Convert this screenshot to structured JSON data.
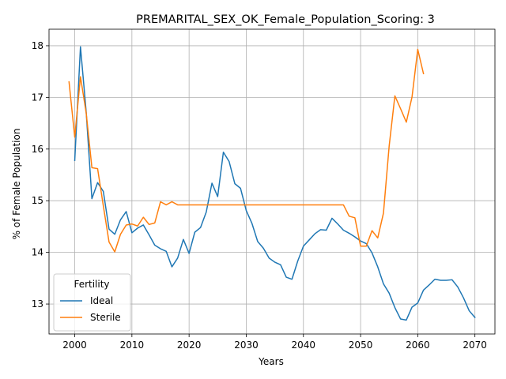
{
  "chart_data": {
    "type": "line",
    "title": "PREMARITAL_SEX_OK_Female_Population_Scoring: 3",
    "xlabel": "Years",
    "ylabel": "% of Female Population",
    "xlim": [
      1995.5,
      2073.5
    ],
    "ylim": [
      12.42,
      18.32
    ],
    "x_ticks": [
      2000,
      2010,
      2020,
      2030,
      2040,
      2050,
      2060,
      2070
    ],
    "y_ticks": [
      13,
      14,
      15,
      16,
      17,
      18
    ],
    "grid": true,
    "legend": {
      "title": "Fertility",
      "placement": "lower-left"
    },
    "series": [
      {
        "name": "Ideal",
        "color": "#1f77b4",
        "x": [
          2000,
          2001,
          2002,
          2003,
          2004,
          2005,
          2006,
          2007,
          2008,
          2009,
          2010,
          2011,
          2012,
          2013,
          2014,
          2015,
          2016,
          2017,
          2018,
          2019,
          2020,
          2021,
          2022,
          2023,
          2024,
          2025,
          2026,
          2027,
          2028,
          2029,
          2030,
          2031,
          2032,
          2033,
          2034,
          2035,
          2036,
          2037,
          2038,
          2039,
          2040,
          2041,
          2042,
          2043,
          2044,
          2045,
          2046,
          2047,
          2048,
          2049,
          2050,
          2051,
          2052,
          2053,
          2054,
          2055,
          2056,
          2057,
          2058,
          2059,
          2060,
          2061,
          2062,
          2063,
          2064,
          2065,
          2066,
          2067,
          2068,
          2069,
          2070
        ],
        "values": [
          15.78,
          17.98,
          16.72,
          15.04,
          15.35,
          15.18,
          14.45,
          14.35,
          14.63,
          14.79,
          14.38,
          14.47,
          14.53,
          14.34,
          14.14,
          14.07,
          14.02,
          13.72,
          13.89,
          14.25,
          13.98,
          14.39,
          14.48,
          14.78,
          15.34,
          15.08,
          15.94,
          15.76,
          15.33,
          15.24,
          14.81,
          14.56,
          14.21,
          14.08,
          13.89,
          13.81,
          13.76,
          13.52,
          13.48,
          13.83,
          14.12,
          14.24,
          14.36,
          14.44,
          14.43,
          14.66,
          14.55,
          14.43,
          14.37,
          14.3,
          14.22,
          14.17,
          13.99,
          13.72,
          13.39,
          13.21,
          12.93,
          12.71,
          12.69,
          12.94,
          13.02,
          13.27,
          13.37,
          13.48,
          13.46,
          13.46,
          13.47,
          13.33,
          13.12,
          12.87,
          12.74
        ]
      },
      {
        "name": "Sterile",
        "color": "#ff7f0e",
        "x": [
          1999,
          2000,
          2001,
          2002,
          2003,
          2004,
          2005,
          2006,
          2007,
          2008,
          2009,
          2010,
          2011,
          2012,
          2013,
          2014,
          2015,
          2016,
          2017,
          2018,
          2019,
          2020,
          2021,
          2022,
          2023,
          2024,
          2025,
          2026,
          2027,
          2028,
          2029,
          2030,
          2031,
          2032,
          2033,
          2034,
          2035,
          2036,
          2037,
          2038,
          2039,
          2040,
          2041,
          2042,
          2043,
          2044,
          2045,
          2046,
          2047,
          2048,
          2049,
          2050,
          2051,
          2052,
          2053,
          2054,
          2055,
          2056,
          2057,
          2058,
          2059,
          2060,
          2061
        ],
        "values": [
          17.3,
          16.23,
          17.4,
          16.7,
          15.64,
          15.62,
          14.9,
          14.2,
          14.01,
          14.35,
          14.53,
          14.55,
          14.51,
          14.68,
          14.54,
          14.57,
          14.98,
          14.92,
          14.98,
          14.92,
          14.92,
          14.92,
          14.92,
          14.92,
          14.92,
          14.92,
          14.92,
          14.92,
          14.92,
          14.92,
          14.92,
          14.92,
          14.92,
          14.92,
          14.92,
          14.92,
          14.92,
          14.92,
          14.92,
          14.92,
          14.92,
          14.92,
          14.92,
          14.92,
          14.92,
          14.92,
          14.92,
          14.92,
          14.92,
          14.7,
          14.67,
          14.12,
          14.12,
          14.42,
          14.28,
          14.76,
          16.06,
          17.03,
          16.78,
          16.52,
          17.01,
          17.93,
          17.46
        ]
      }
    ]
  }
}
